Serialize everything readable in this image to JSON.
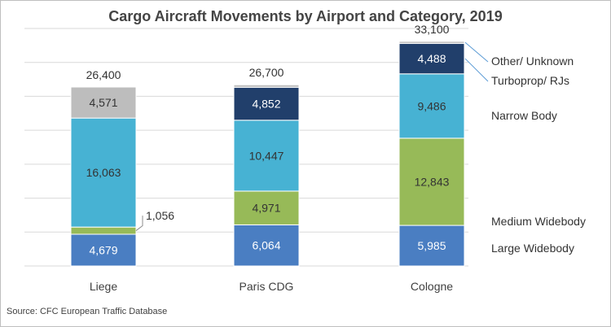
{
  "chart_data": {
    "type": "bar",
    "stacked": true,
    "title": "Cargo Aircraft Movements by Airport and Category, 2019",
    "source": "Source: CFC European Traffic Database",
    "categories": [
      "Liege",
      "Paris CDG",
      "Cologne"
    ],
    "totals": [
      "26,400",
      "26,700",
      "33,100"
    ],
    "series": [
      {
        "name": "Large Widebody",
        "color": "#4a7ec2",
        "values": [
          4679,
          6064,
          5985
        ],
        "labels": [
          "4,679",
          "6,064",
          "5,985"
        ]
      },
      {
        "name": "Medium Widebody",
        "color": "#97ba58",
        "values": [
          1056,
          4971,
          12843
        ],
        "labels": [
          "1,056",
          "4,971",
          "12,843"
        ]
      },
      {
        "name": "Narrow Body",
        "color": "#47b2d3",
        "values": [
          16063,
          10447,
          9486
        ],
        "labels": [
          "16,063",
          "10,447",
          "9,486"
        ]
      },
      {
        "name": "Turboprop/ RJs",
        "color": "#213f6b",
        "values": [
          0,
          4852,
          4488
        ],
        "labels": [
          "",
          "4,852",
          "4,488"
        ]
      },
      {
        "name": "Other/ Unknown",
        "color": "#bdbdbd",
        "values": [
          4571,
          366,
          298
        ],
        "labels": [
          "4,571",
          "",
          ""
        ]
      }
    ],
    "ylim": [
      0,
      35000
    ],
    "grid": true
  }
}
